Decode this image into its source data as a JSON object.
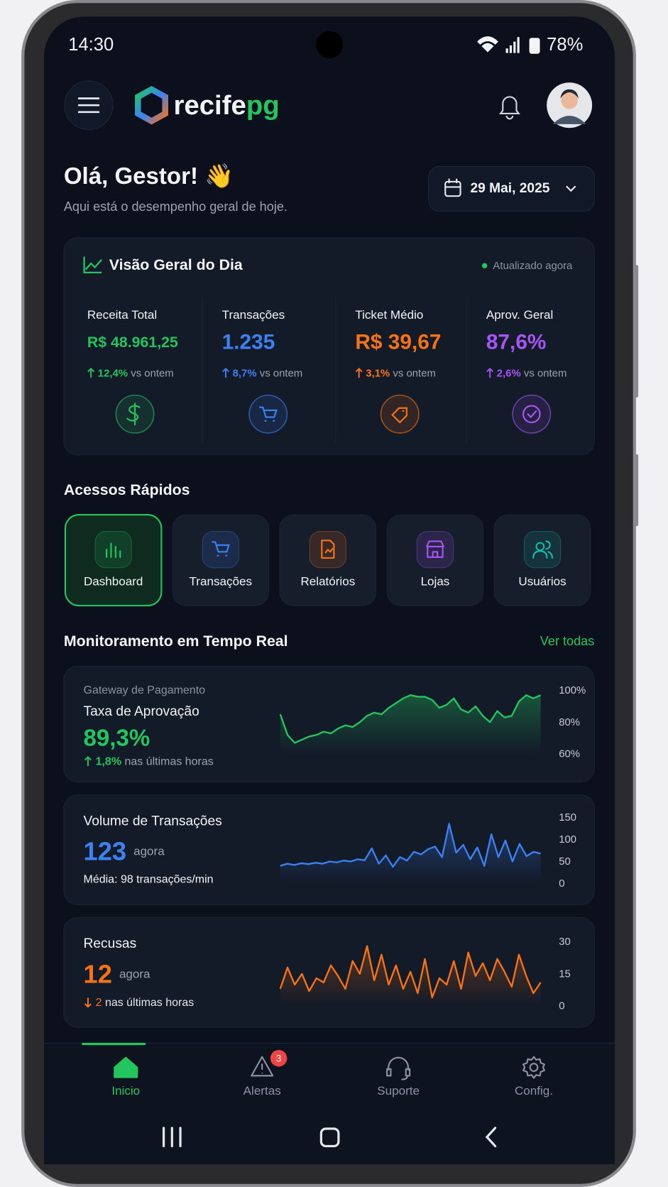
{
  "status_bar": {
    "time": "14:30",
    "battery": "78%"
  },
  "header": {
    "brand_a": "recife",
    "brand_b": "pg"
  },
  "greeting": {
    "title": "Olá, Gestor! 👋",
    "subtitle": "Aqui está o desempenho geral de hoje.",
    "date": "29 Mai, 2025"
  },
  "overview": {
    "title": "Visão Geral do Dia",
    "status": "Atualizado agora",
    "cards": [
      {
        "label": "Receita Total",
        "value": "R$ 48.961,25",
        "change": "12,4%",
        "suffix": "vs ontem",
        "color": "#22c55e"
      },
      {
        "label": "Transações",
        "value": "1.235",
        "change": "8,7%",
        "suffix": "vs ontem",
        "color": "#3b82f6"
      },
      {
        "label": "Ticket Médio",
        "value": "R$ 39,67",
        "change": "3,1%",
        "suffix": "vs ontem",
        "color": "#f97316"
      },
      {
        "label": "Aprov. Geral",
        "value": "87,6%",
        "change": "2,6%",
        "suffix": "vs ontem",
        "color": "#a855f7"
      }
    ]
  },
  "quick_access": {
    "title": "Acessos Rápidos",
    "items": [
      "Dashboard",
      "Transações",
      "Relatórios",
      "Lojas",
      "Usuários"
    ]
  },
  "monitoring": {
    "title": "Monitoramento em Tempo Real",
    "link": "Ver todas",
    "panels": [
      {
        "source": "Gateway de Pagamento",
        "title": "Taxa de Aprovação",
        "value": "89,3%",
        "change": "1,8%",
        "note": "nas últimas horas",
        "chart_data": {
          "type": "line",
          "color": "#22c55e",
          "ylim": [
            60,
            100
          ],
          "yticks": [
            {
              "value": 100,
              "label": "100%"
            },
            {
              "value": 80,
              "label": "80%"
            },
            {
              "value": 60,
              "label": "60%"
            }
          ],
          "values": [
            85,
            72,
            67,
            69,
            71,
            72,
            74,
            73,
            76,
            78,
            77,
            80,
            84,
            86,
            85,
            89,
            92,
            95,
            97,
            96,
            96,
            94,
            89,
            91,
            95,
            88,
            86,
            90,
            84,
            80,
            87,
            83,
            84,
            93,
            97,
            95,
            97
          ]
        }
      },
      {
        "title": "Volume de Transações",
        "value": "123",
        "unit": "agora",
        "note": "Média: 98 transações/min",
        "chart_data": {
          "type": "line",
          "color": "#3b82f6",
          "ylim": [
            0,
            150
          ],
          "yticks": [
            150,
            100,
            50,
            0
          ],
          "values": [
            40,
            45,
            42,
            46,
            44,
            47,
            45,
            50,
            48,
            52,
            50,
            55,
            53,
            80,
            45,
            64,
            38,
            60,
            52,
            72,
            66,
            78,
            84,
            60,
            136,
            70,
            88,
            55,
            82,
            40,
            112,
            60,
            98,
            50,
            90,
            62,
            72,
            68
          ]
        }
      },
      {
        "title": "Recusas",
        "value": "12",
        "unit": "agora",
        "change": "2",
        "note": "nas últimas horas",
        "chart_data": {
          "type": "line",
          "color": "#f97316",
          "ylim": [
            0,
            30
          ],
          "yticks": [
            30,
            15,
            0
          ],
          "values": [
            8,
            18,
            10,
            15,
            7,
            13,
            11,
            19,
            14,
            8,
            21,
            15,
            28,
            12,
            24,
            10,
            19,
            8,
            16,
            6,
            22,
            4,
            13,
            10,
            21,
            8,
            25,
            14,
            20,
            12,
            22,
            16,
            9,
            24,
            14,
            6,
            11
          ]
        }
      }
    ]
  },
  "nav": {
    "items": [
      "Inicio",
      "Alertas",
      "Suporte",
      "Config."
    ],
    "badge": "3"
  }
}
